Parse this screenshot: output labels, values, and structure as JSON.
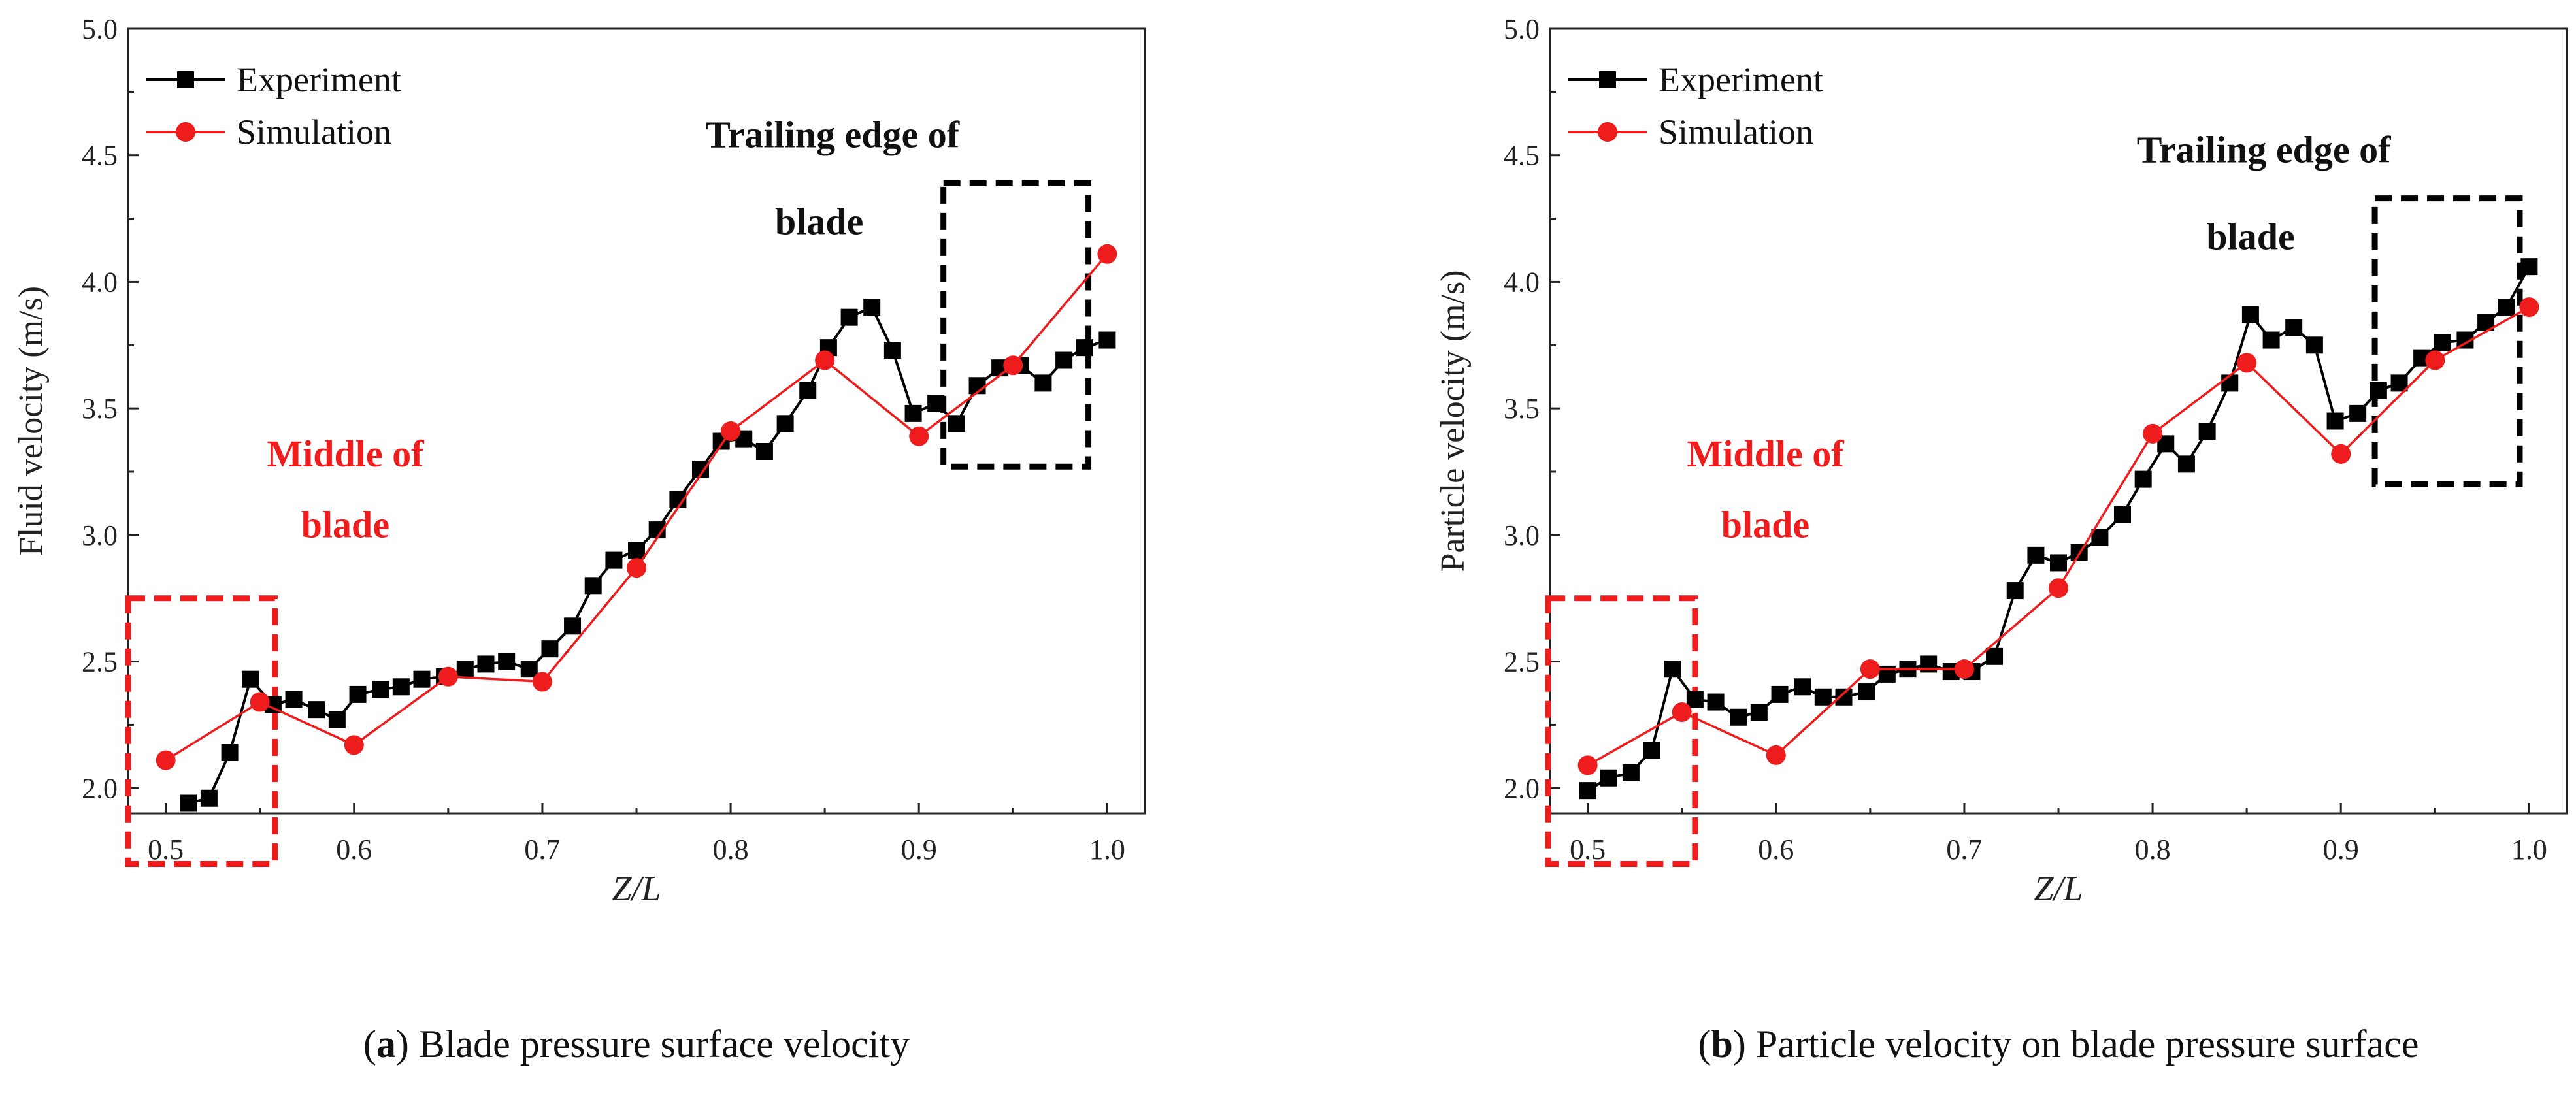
{
  "colors": {
    "experiment": "#000000",
    "simulation": "#ee1c1c",
    "middle_box": "#ee1c1c",
    "trailing_box": "#000000"
  },
  "chart_data": [
    {
      "type": "line",
      "xlabel": "Z/L",
      "ylabel": "Fluid velocity (m/s)",
      "xlim": [
        0.48,
        1.02
      ],
      "ylim": [
        1.9,
        5.0
      ],
      "xticks": [
        "0.5",
        "0.6",
        "0.7",
        "0.8",
        "0.9",
        "1.0"
      ],
      "yticks": [
        "2.0",
        "2.5",
        "3.0",
        "3.5",
        "4.0",
        "4.5",
        "5.0"
      ],
      "legend": [
        "Experiment",
        "Simulation"
      ],
      "series": [
        {
          "name": "Experiment",
          "marker": "square",
          "x": [
            0.512,
            0.523,
            0.534,
            0.545,
            0.557,
            0.568,
            0.58,
            0.591,
            0.602,
            0.614,
            0.625,
            0.636,
            0.648,
            0.659,
            0.67,
            0.681,
            0.693,
            0.704,
            0.716,
            0.727,
            0.738,
            0.75,
            0.761,
            0.772,
            0.784,
            0.795,
            0.807,
            0.818,
            0.829,
            0.841,
            0.852,
            0.863,
            0.875,
            0.886,
            0.897,
            0.909,
            0.92,
            0.931,
            0.943,
            0.954,
            0.966,
            0.977,
            0.988,
            1.0
          ],
          "values": [
            1.94,
            1.96,
            2.14,
            2.43,
            2.33,
            2.35,
            2.31,
            2.27,
            2.37,
            2.39,
            2.4,
            2.43,
            2.44,
            2.47,
            2.49,
            2.5,
            2.47,
            2.55,
            2.64,
            2.8,
            2.9,
            2.94,
            3.02,
            3.14,
            3.26,
            3.37,
            3.38,
            3.33,
            3.44,
            3.57,
            3.74,
            3.86,
            3.9,
            3.73,
            3.48,
            3.52,
            3.44,
            3.59,
            3.66,
            3.67,
            3.6,
            3.69,
            3.74,
            3.77
          ]
        },
        {
          "name": "Simulation",
          "marker": "circle",
          "x": [
            0.5,
            0.55,
            0.6,
            0.65,
            0.7,
            0.75,
            0.8,
            0.85,
            0.9,
            0.95,
            1.0
          ],
          "values": [
            2.11,
            2.34,
            2.17,
            2.44,
            2.42,
            2.87,
            3.41,
            3.69,
            3.39,
            3.67,
            4.11
          ]
        }
      ],
      "annotations": {
        "middle_line1": "Middle of",
        "middle_line2": "blade",
        "trailing_line1": "Trailing edge of",
        "trailing_line2": "blade"
      },
      "highlight_boxes": [
        {
          "name": "middle-box",
          "x": [
            0.48,
            0.558
          ],
          "y": [
            1.7,
            2.75
          ]
        },
        {
          "name": "trailing-box",
          "x": [
            0.913,
            0.99
          ],
          "y": [
            3.27,
            4.39
          ]
        }
      ],
      "caption": {
        "letter": "a",
        "text": "Blade pressure surface velocity"
      }
    },
    {
      "type": "line",
      "xlabel": "Z/L",
      "ylabel": "Particle velocity (m/s)",
      "xlim": [
        0.48,
        1.02
      ],
      "ylim": [
        1.9,
        5.0
      ],
      "xticks": [
        "0.5",
        "0.6",
        "0.7",
        "0.8",
        "0.9",
        "1.0"
      ],
      "yticks": [
        "2.0",
        "2.5",
        "3.0",
        "3.5",
        "4.0",
        "4.5",
        "5.0"
      ],
      "legend": [
        "Experiment",
        "Simulation"
      ],
      "series": [
        {
          "name": "Experiment",
          "marker": "square",
          "x": [
            0.5,
            0.511,
            0.523,
            0.534,
            0.545,
            0.557,
            0.568,
            0.58,
            0.591,
            0.602,
            0.614,
            0.625,
            0.636,
            0.648,
            0.659,
            0.67,
            0.681,
            0.693,
            0.704,
            0.716,
            0.727,
            0.738,
            0.75,
            0.761,
            0.772,
            0.784,
            0.795,
            0.807,
            0.818,
            0.829,
            0.841,
            0.852,
            0.863,
            0.875,
            0.886,
            0.897,
            0.909,
            0.92,
            0.931,
            0.943,
            0.954,
            0.966,
            0.977,
            0.988,
            1.0
          ],
          "values": [
            1.99,
            2.04,
            2.06,
            2.15,
            2.47,
            2.35,
            2.34,
            2.28,
            2.3,
            2.37,
            2.4,
            2.36,
            2.36,
            2.38,
            2.45,
            2.47,
            2.49,
            2.46,
            2.46,
            2.52,
            2.78,
            2.92,
            2.89,
            2.93,
            2.99,
            3.08,
            3.22,
            3.36,
            3.28,
            3.41,
            3.6,
            3.87,
            3.77,
            3.82,
            3.75,
            3.45,
            3.48,
            3.57,
            3.6,
            3.7,
            3.76,
            3.77,
            3.84,
            3.9,
            4.06
          ]
        },
        {
          "name": "Simulation",
          "marker": "circle",
          "x": [
            0.5,
            0.55,
            0.6,
            0.65,
            0.7,
            0.75,
            0.8,
            0.85,
            0.9,
            0.95,
            1.0
          ],
          "values": [
            2.09,
            2.3,
            2.13,
            2.47,
            2.47,
            2.79,
            3.4,
            3.68,
            3.32,
            3.69,
            3.9
          ]
        }
      ],
      "annotations": {
        "middle_line1": "Middle of",
        "middle_line2": "blade",
        "trailing_line1": "Trailing edge of",
        "trailing_line2": "blade"
      },
      "highlight_boxes": [
        {
          "name": "middle-box",
          "x": [
            0.479,
            0.557
          ],
          "y": [
            1.7,
            2.75
          ]
        },
        {
          "name": "trailing-box",
          "x": [
            0.918,
            0.995
          ],
          "y": [
            3.2,
            4.33
          ]
        }
      ],
      "caption": {
        "letter": "b",
        "text": "Particle velocity on blade pressure surface"
      }
    }
  ]
}
